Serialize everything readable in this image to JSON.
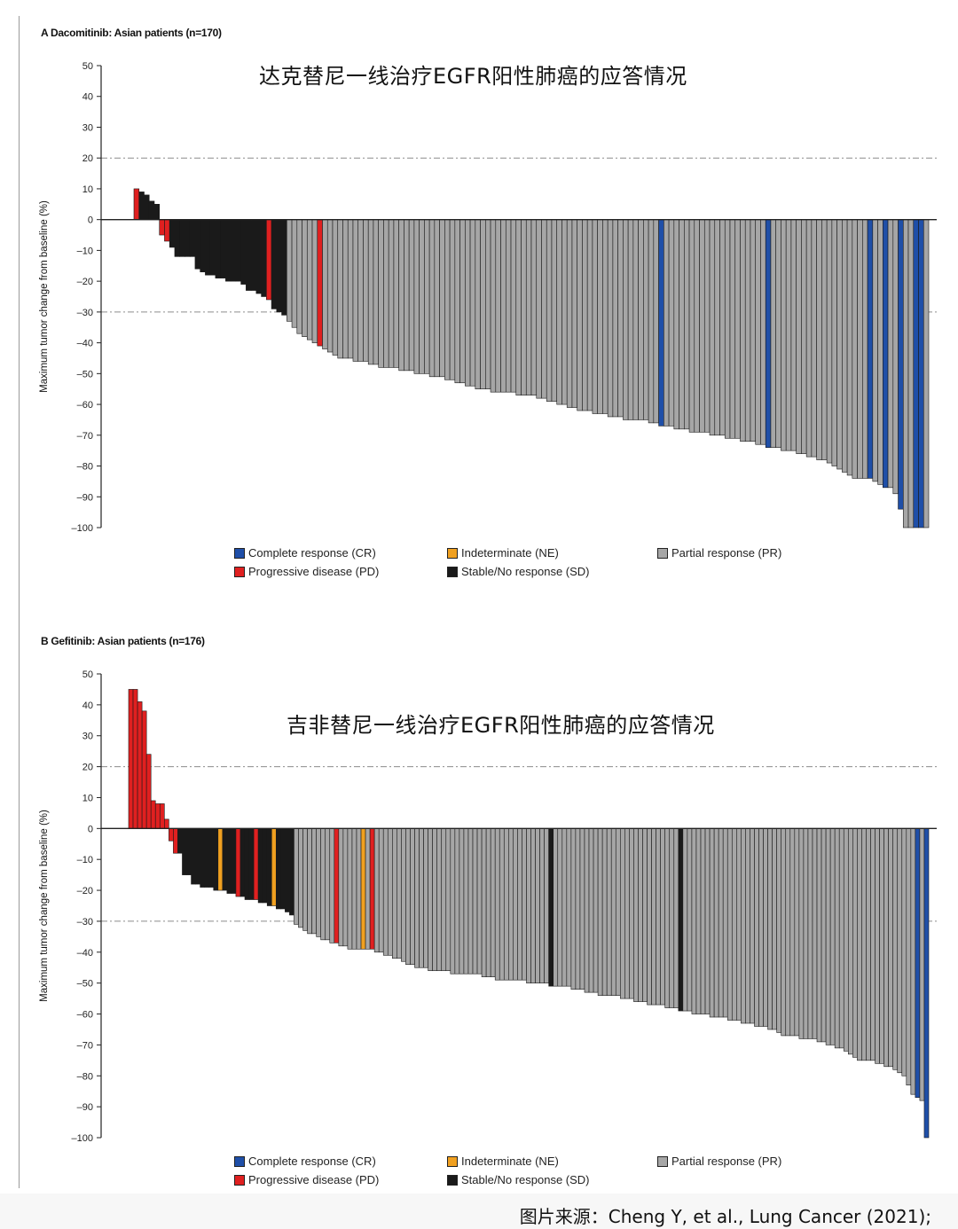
{
  "source_note": "图片来源：Cheng Y, et al., Lung Cancer (2021);",
  "colors": {
    "CR": "#1f4fa8",
    "NE": "#f0a020",
    "PR": "#a6a6a6",
    "PD": "#e02020",
    "SD": "#1a1a1a"
  },
  "chart_data": [
    {
      "type": "bar",
      "panel_label": "A Dacomitinib: Asian patients (n=170)",
      "title": "达克替尼一线治疗EGFR阳性肺癌的应答情况",
      "ylabel": "Maximum tumor change from baseline (%)",
      "ylim": [
        -100,
        50
      ],
      "yticks": [
        "50",
        "40",
        "30",
        "20",
        "10",
        "0",
        "-10",
        "-20",
        "-30",
        "-40",
        "-50",
        "-60",
        "-70",
        "-80",
        "-90",
        "-100"
      ],
      "reference_lines": [
        20,
        -30
      ],
      "legend": [
        {
          "code": "CR",
          "label": "Complete response (CR)"
        },
        {
          "code": "NE",
          "label": "Indeterminate (NE)"
        },
        {
          "code": "PR",
          "label": "Partial response (PR)"
        },
        {
          "code": "PD",
          "label": "Progressive disease (PD)"
        },
        {
          "code": "SD",
          "label": "Stable/No response (SD)"
        }
      ],
      "patients": 170,
      "bar_runs": [
        {
          "cat": "PD",
          "values": [
            10
          ]
        },
        {
          "cat": "SD",
          "values": [
            9,
            8,
            6,
            5
          ]
        },
        {
          "cat": "PD",
          "values": [
            -5,
            -7
          ]
        },
        {
          "cat": "SD",
          "values": [
            -9,
            -12,
            -12,
            -12,
            -12,
            -16,
            -17,
            -18,
            -18,
            -19,
            -19,
            -20,
            -20,
            -20,
            -21,
            -23,
            -23,
            -24,
            -25
          ]
        },
        {
          "cat": "PD",
          "values": [
            -26
          ]
        },
        {
          "cat": "SD",
          "values": [
            -29,
            -30,
            -31
          ]
        },
        {
          "cat": "PR",
          "values": [
            -33,
            -35,
            -37,
            -38,
            -39,
            -40
          ]
        },
        {
          "cat": "PD",
          "values": [
            -41
          ]
        },
        {
          "cat": "PR",
          "values": [
            -42,
            -43,
            -44,
            -45,
            -45,
            -45,
            -46,
            -46,
            -46,
            -47,
            -47,
            -48,
            -48,
            -48,
            -48,
            -49,
            -49,
            -49,
            -50,
            -50,
            -50,
            -51,
            -51,
            -51,
            -52,
            -52,
            -53,
            -53,
            -54,
            -54,
            -55,
            -55,
            -55,
            -56,
            -56,
            -56,
            -56,
            -56,
            -57,
            -57,
            -57,
            -57,
            -58,
            -58,
            -59,
            -59,
            -60,
            -60,
            -61,
            -61,
            -62,
            -62,
            -62,
            -63,
            -63,
            -63,
            -64,
            -64,
            -64,
            -65,
            -65,
            -65,
            -65,
            -65,
            -66,
            -66
          ]
        },
        {
          "cat": "CR",
          "values": [
            -67
          ]
        },
        {
          "cat": "PR",
          "values": [
            -67,
            -67,
            -68,
            -68,
            -68,
            -69,
            -69,
            -69,
            -69,
            -70,
            -70,
            -70,
            -71,
            -71,
            -71,
            -72,
            -72,
            -72,
            -73,
            -73
          ]
        },
        {
          "cat": "CR",
          "values": [
            -74
          ]
        },
        {
          "cat": "PR",
          "values": [
            -74,
            -74,
            -75,
            -75,
            -75,
            -76,
            -76,
            -77,
            -77,
            -78,
            -78,
            -79,
            -80,
            -81,
            -82,
            -83,
            -84,
            -84,
            -84
          ]
        },
        {
          "cat": "CR",
          "values": [
            -84
          ]
        },
        {
          "cat": "PR",
          "values": [
            -85,
            -86
          ]
        },
        {
          "cat": "CR",
          "values": [
            -87
          ]
        },
        {
          "cat": "PR",
          "values": [
            -87,
            -89
          ]
        },
        {
          "cat": "CR",
          "values": [
            -94
          ]
        },
        {
          "cat": "PR",
          "values": [
            -100,
            -100
          ]
        },
        {
          "cat": "CR",
          "values": [
            -100,
            -100
          ]
        },
        {
          "cat": "PR",
          "values": [
            -100
          ]
        }
      ]
    },
    {
      "type": "bar",
      "panel_label": "B Gefitinib: Asian patients (n=176)",
      "title": "吉非替尼一线治疗EGFR阳性肺癌的应答情况",
      "ylabel": "Maximum tumor change from baseline (%)",
      "ylim": [
        -100,
        50
      ],
      "yticks": [
        "50",
        "40",
        "30",
        "20",
        "10",
        "0",
        "-10",
        "-20",
        "-30",
        "-40",
        "-50",
        "-60",
        "-70",
        "-80",
        "-90",
        "-100"
      ],
      "reference_lines": [
        20,
        -30
      ],
      "legend": [
        {
          "code": "CR",
          "label": "Complete response (CR)"
        },
        {
          "code": "NE",
          "label": "Indeterminate (NE)"
        },
        {
          "code": "PR",
          "label": "Partial response (PR)"
        },
        {
          "code": "PD",
          "label": "Progressive disease (PD)"
        },
        {
          "code": "SD",
          "label": "Stable/No response (SD)"
        }
      ],
      "patients": 176,
      "bar_runs": [
        {
          "cat": "PD",
          "values": [
            45,
            45,
            41,
            38,
            24,
            9,
            8,
            8,
            3,
            -4,
            -8
          ]
        },
        {
          "cat": "SD",
          "values": [
            -8,
            -15,
            -15,
            -18,
            -18,
            -19,
            -19,
            -19,
            -20
          ]
        },
        {
          "cat": "NE",
          "values": [
            -20
          ]
        },
        {
          "cat": "SD",
          "values": [
            -20,
            -21,
            -21
          ]
        },
        {
          "cat": "PD",
          "values": [
            -22
          ]
        },
        {
          "cat": "SD",
          "values": [
            -22,
            -23,
            -23
          ]
        },
        {
          "cat": "PD",
          "values": [
            -23
          ]
        },
        {
          "cat": "SD",
          "values": [
            -24,
            -24,
            -25
          ]
        },
        {
          "cat": "NE",
          "values": [
            -25
          ]
        },
        {
          "cat": "SD",
          "values": [
            -26,
            -26,
            -27,
            -28
          ]
        },
        {
          "cat": "PR",
          "values": [
            -31,
            -32,
            -33,
            -34,
            -34,
            -35,
            -36,
            -36,
            -37
          ]
        },
        {
          "cat": "PD",
          "values": [
            -37
          ]
        },
        {
          "cat": "PR",
          "values": [
            -38,
            -38,
            -39,
            -39,
            -39
          ]
        },
        {
          "cat": "NE",
          "values": [
            -39
          ]
        },
        {
          "cat": "PR",
          "values": [
            -39
          ]
        },
        {
          "cat": "PD",
          "values": [
            -39
          ]
        },
        {
          "cat": "PR",
          "values": [
            -40,
            -40,
            -41,
            -41,
            -42,
            -42,
            -43,
            -44,
            -44,
            -45,
            -45,
            -45,
            -46,
            -46,
            -46,
            -46,
            -46,
            -47,
            -47,
            -47,
            -47,
            -47,
            -47,
            -47,
            -48,
            -48,
            -48,
            -49,
            -49,
            -49,
            -49,
            -49,
            -49,
            -49,
            -50,
            -50,
            -50,
            -50,
            -50
          ]
        },
        {
          "cat": "SD",
          "values": [
            -51
          ]
        },
        {
          "cat": "PR",
          "values": [
            -51,
            -51,
            -51,
            -51,
            -52,
            -52,
            -52,
            -53,
            -53,
            -53,
            -54,
            -54,
            -54,
            -54,
            -54,
            -55,
            -55,
            -55,
            -56,
            -56,
            -56,
            -57,
            -57,
            -57,
            -57,
            -58,
            -58,
            -58
          ]
        },
        {
          "cat": "SD",
          "values": [
            -59
          ]
        },
        {
          "cat": "PR",
          "values": [
            -59,
            -59,
            -60,
            -60,
            -60,
            -60,
            -61,
            -61,
            -61,
            -61,
            -62,
            -62,
            -62,
            -63,
            -63,
            -63,
            -64,
            -64,
            -64,
            -65,
            -65,
            -66,
            -67,
            -67,
            -67,
            -67,
            -68,
            -68,
            -68,
            -68,
            -69,
            -69,
            -70,
            -70,
            -71,
            -71,
            -72,
            -73,
            -74,
            -75,
            -75,
            -75,
            -75,
            -76,
            -76,
            -77,
            -77,
            -78,
            -79,
            -80,
            -83,
            -86
          ]
        },
        {
          "cat": "CR",
          "values": [
            -87
          ]
        },
        {
          "cat": "PR",
          "values": [
            -88
          ]
        },
        {
          "cat": "CR",
          "values": [
            -100
          ]
        }
      ]
    }
  ]
}
